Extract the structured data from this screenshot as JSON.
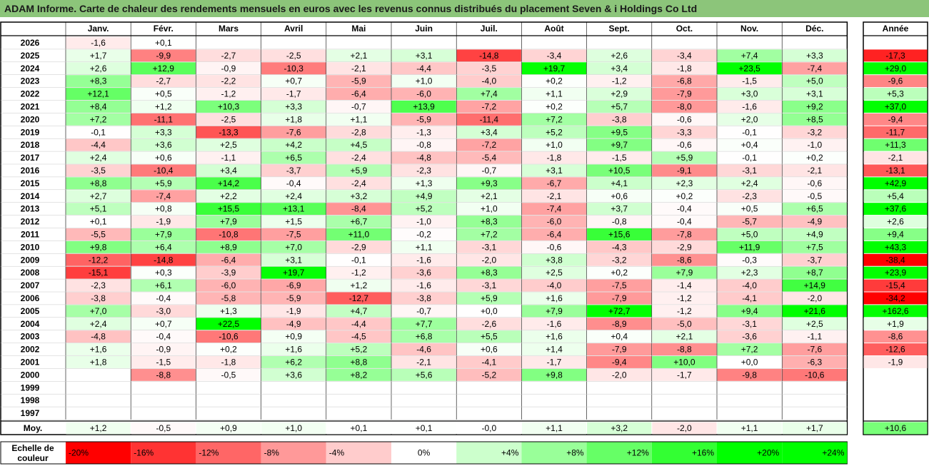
{
  "title": "ADAM Informe. Carte de chaleur des rendements mensuels en euros avec les revenus connus distribués du placement Seven & i Holdings Co Ltd",
  "chart_data": {
    "type": "heatmap",
    "months": [
      "Janv.",
      "Févr.",
      "Mars",
      "Avril",
      "Mai",
      "Juin",
      "Juil.",
      "Août",
      "Sept.",
      "Oct.",
      "Nov.",
      "Déc."
    ],
    "year_header": "Année",
    "rows": [
      {
        "year": "2026",
        "values": [
          "-1,6",
          "+0,1",
          null,
          null,
          null,
          null,
          null,
          null,
          null,
          null,
          null,
          null
        ],
        "annual": null
      },
      {
        "year": "2025",
        "values": [
          "+1,7",
          "-9,9",
          "-2,7",
          "-2,5",
          "+2,1",
          "+3,1",
          "-14,8",
          "-3,4",
          "+2,6",
          "-3,4",
          "+7,4",
          "+3,3"
        ],
        "annual": "-17,3"
      },
      {
        "year": "2024",
        "values": [
          "+2,6",
          "+12,9",
          "-0,9",
          "-10,3",
          "-2,1",
          "-4,4",
          "-3,5",
          "+19,7",
          "+3,4",
          "-1,8",
          "+23,5",
          "-7,4"
        ],
        "annual": "+29,0"
      },
      {
        "year": "2023",
        "values": [
          "+8,3",
          "-2,7",
          "-2,2",
          "+0,7",
          "-5,9",
          "+1,0",
          "-4,0",
          "+0,2",
          "-1,2",
          "-6,8",
          "-1,5",
          "+5,0"
        ],
        "annual": "-9,6"
      },
      {
        "year": "2022",
        "values": [
          "+12,1",
          "+0,5",
          "-1,2",
          "-1,7",
          "-6,4",
          "-6,0",
          "+7,4",
          "+1,1",
          "+2,9",
          "-7,9",
          "+3,0",
          "+3,1"
        ],
        "annual": "+5,3"
      },
      {
        "year": "2021",
        "values": [
          "+8,4",
          "+1,2",
          "+10,3",
          "+3,3",
          "-0,7",
          "+13,9",
          "-7,2",
          "+0,2",
          "+5,7",
          "-8,0",
          "-1,6",
          "+9,2"
        ],
        "annual": "+37,0"
      },
      {
        "year": "2020",
        "values": [
          "+7,2",
          "-11,1",
          "-2,5",
          "+1,8",
          "+1,1",
          "-5,9",
          "-11,4",
          "+7,2",
          "-3,8",
          "-0,6",
          "+2,0",
          "+8,5"
        ],
        "annual": "-9,4"
      },
      {
        "year": "2019",
        "values": [
          "-0,1",
          "+3,3",
          "-13,3",
          "-7,6",
          "-2,8",
          "-1,3",
          "+3,4",
          "+5,2",
          "+9,5",
          "-3,3",
          "-0,1",
          "-3,2"
        ],
        "annual": "-11,7"
      },
      {
        "year": "2018",
        "values": [
          "-4,4",
          "+3,6",
          "+2,5",
          "+4,2",
          "+4,5",
          "-0,8",
          "-7,2",
          "+1,0",
          "+9,7",
          "-0,6",
          "+0,4",
          "-1,0"
        ],
        "annual": "+11,3"
      },
      {
        "year": "2017",
        "values": [
          "+2,4",
          "+0,6",
          "-1,1",
          "+6,5",
          "-2,4",
          "-4,8",
          "-5,4",
          "-1,8",
          "-1,5",
          "+5,9",
          "-0,1",
          "+0,2"
        ],
        "annual": "-2,1"
      },
      {
        "year": "2016",
        "values": [
          "-3,5",
          "-10,4",
          "+3,4",
          "-3,7",
          "+5,9",
          "-2,3",
          "-0,7",
          "+3,1",
          "+10,5",
          "-9,1",
          "-3,1",
          "-2,1"
        ],
        "annual": "-13,1"
      },
      {
        "year": "2015",
        "values": [
          "+8,8",
          "+5,9",
          "+14,2",
          "-0,4",
          "-2,4",
          "+1,3",
          "+9,3",
          "-6,7",
          "+4,1",
          "+2,3",
          "+2,4",
          "-0,6"
        ],
        "annual": "+42,9"
      },
      {
        "year": "2014",
        "values": [
          "+2,7",
          "-7,4",
          "+2,2",
          "+2,4",
          "+3,2",
          "+4,9",
          "+2,1",
          "-2,1",
          "+0,6",
          "+0,2",
          "-2,3",
          "-0,5"
        ],
        "annual": "+5,4"
      },
      {
        "year": "2013",
        "values": [
          "+5,1",
          "+0,8",
          "+15,5",
          "+13,1",
          "-8,4",
          "+5,2",
          "+1,0",
          "-7,4",
          "+3,7",
          "-0,4",
          "+0,5",
          "+6,5"
        ],
        "annual": "+37,6"
      },
      {
        "year": "2012",
        "values": [
          "+0,1",
          "-1,9",
          "+7,9",
          "+1,5",
          "+6,7",
          "-1,0",
          "+8,3",
          "-6,0",
          "-0,8",
          "-0,4",
          "-5,7",
          "-4,9"
        ],
        "annual": "+2,6"
      },
      {
        "year": "2011",
        "values": [
          "-5,5",
          "+7,9",
          "-10,8",
          "-7,5",
          "+11,0",
          "-0,2",
          "+7,2",
          "-6,4",
          "+15,6",
          "-7,8",
          "+5,0",
          "+4,9"
        ],
        "annual": "+9,4"
      },
      {
        "year": "2010",
        "values": [
          "+9,8",
          "+6,4",
          "+8,9",
          "+7,0",
          "-2,9",
          "+1,1",
          "-3,1",
          "-0,6",
          "-4,3",
          "-2,9",
          "+11,9",
          "+7,5"
        ],
        "annual": "+43,3"
      },
      {
        "year": "2009",
        "values": [
          "-12,2",
          "-14,8",
          "-6,4",
          "+3,1",
          "-0,1",
          "-1,6",
          "-2,0",
          "+3,8",
          "-3,2",
          "-8,6",
          "-0,3",
          "-3,7"
        ],
        "annual": "-38,4"
      },
      {
        "year": "2008",
        "values": [
          "-15,1",
          "+0,3",
          "-3,9",
          "+19,7",
          "-1,2",
          "-3,6",
          "+8,3",
          "+2,5",
          "+0,2",
          "+7,9",
          "+2,3",
          "+8,7"
        ],
        "annual": "+23,9"
      },
      {
        "year": "2007",
        "values": [
          "-2,3",
          "+6,1",
          "-6,0",
          "-6,9",
          "+1,2",
          "-1,6",
          "-3,1",
          "-4,0",
          "-7,5",
          "-1,4",
          "-4,0",
          "+14,9"
        ],
        "annual": "-15,4"
      },
      {
        "year": "2006",
        "values": [
          "-3,8",
          "-0,4",
          "-5,8",
          "-5,9",
          "-12,7",
          "-3,8",
          "+5,9",
          "+1,6",
          "-7,9",
          "-1,2",
          "-4,1",
          "-2,0"
        ],
        "annual": "-34,2"
      },
      {
        "year": "2005",
        "values": [
          "+7,0",
          "-3,0",
          "+1,3",
          "-1,9",
          "+4,7",
          "-0,7",
          "+0,0",
          "+7,9",
          "+72,7",
          "-1,2",
          "+9,4",
          "+21,6"
        ],
        "annual": "+162,6"
      },
      {
        "year": "2004",
        "values": [
          "+2,4",
          "+0,7",
          "+22,5",
          "-4,9",
          "-4,4",
          "+7,7",
          "-2,6",
          "-1,6",
          "-8,9",
          "-5,0",
          "-3,1",
          "+2,5"
        ],
        "annual": "+1,9"
      },
      {
        "year": "2003",
        "values": [
          "-4,8",
          "-0,4",
          "-10,6",
          "+0,9",
          "-4,5",
          "+6,8",
          "+5,5",
          "+1,6",
          "+0,4",
          "+2,1",
          "-3,6",
          "-1,1"
        ],
        "annual": "-8,6"
      },
      {
        "year": "2002",
        "values": [
          "+1,6",
          "-0,9",
          "+0,2",
          "+1,6",
          "+5,2",
          "-4,6",
          "+0,6",
          "+1,4",
          "-7,9",
          "-8,8",
          "+7,2",
          "-7,6"
        ],
        "annual": "-12,6"
      },
      {
        "year": "2001",
        "values": [
          "+1,8",
          "-1,5",
          "-1,8",
          "+6,2",
          "+8,8",
          "-2,1",
          "-4,1",
          "-1,7",
          "-9,4",
          "+10,0",
          "+0,0",
          "-6,3"
        ],
        "annual": "-1,9"
      },
      {
        "year": "2000",
        "values": [
          null,
          "-8,8",
          "-0,5",
          "+3,6",
          "+8,2",
          "+5,6",
          "-5,2",
          "+9,8",
          "-2,0",
          "-1,7",
          "-9,8",
          "-10,6"
        ],
        "annual": null
      },
      {
        "year": "1999",
        "values": [
          null,
          null,
          null,
          null,
          null,
          null,
          null,
          null,
          null,
          null,
          null,
          null
        ],
        "annual": null
      },
      {
        "year": "1998",
        "values": [
          null,
          null,
          null,
          null,
          null,
          null,
          null,
          null,
          null,
          null,
          null,
          null
        ],
        "annual": null
      },
      {
        "year": "1997",
        "values": [
          null,
          null,
          null,
          null,
          null,
          null,
          null,
          null,
          null,
          null,
          null,
          null
        ],
        "annual": null
      }
    ],
    "average": {
      "label": "Moy.",
      "values": [
        "+1,2",
        "-0,5",
        "+0,9",
        "+1,0",
        "+0,1",
        "+0,1",
        "-0,0",
        "+1,1",
        "+3,2",
        "-2,0",
        "+1,1",
        "+1,7"
      ],
      "annual": "+10,6"
    },
    "legend": {
      "title_lines": [
        "Echelle de",
        "couleur"
      ],
      "steps": [
        {
          "label": "-20%",
          "color": "#ff0000"
        },
        {
          "label": "-16%",
          "color": "#ff3333"
        },
        {
          "label": "-12%",
          "color": "#ff6666"
        },
        {
          "label": "-8%",
          "color": "#ff9999"
        },
        {
          "label": "-4%",
          "color": "#ffcccc"
        },
        {
          "label": "0%",
          "color": "#ffffff"
        },
        {
          "label": "+4%",
          "color": "#ccffcc"
        },
        {
          "label": "+8%",
          "color": "#99ff99"
        },
        {
          "label": "+12%",
          "color": "#66ff66"
        },
        {
          "label": "+16%",
          "color": "#33ff33"
        },
        {
          "label": "+20%",
          "color": "#00ff00"
        },
        {
          "label": "+24%",
          "color": "#00ff00"
        }
      ]
    }
  }
}
